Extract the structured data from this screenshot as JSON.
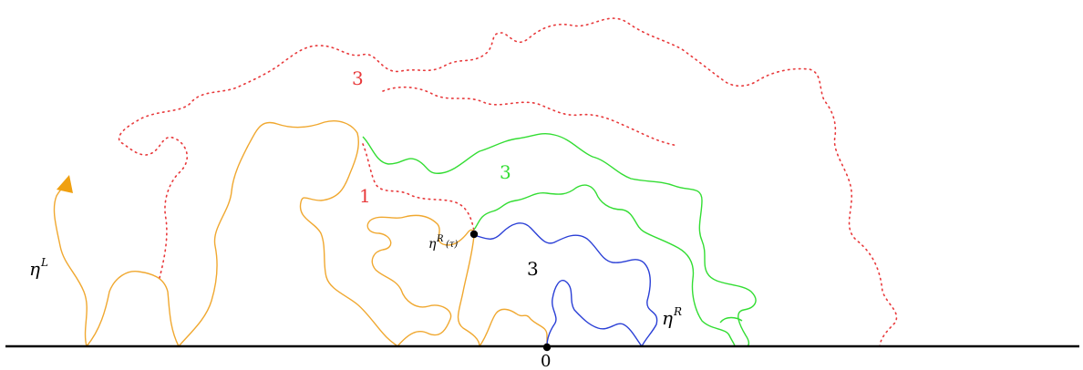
{
  "labels": {
    "red_region_top": "3",
    "red_region_mid": "1",
    "green_region": "3",
    "black_region": "3",
    "eta_L": "η",
    "eta_L_sup": "L",
    "eta_R": "η",
    "eta_R_sup": "R",
    "eta_tau": "η",
    "eta_tau_sup": "R",
    "eta_tau_arg": "(τ)",
    "origin": "0"
  },
  "colors": {
    "orange": "#f0a830",
    "red": "#e8393b",
    "green": "#33dd33",
    "blue": "#2a3fd6",
    "black": "#000000",
    "arrow": "#f0a010"
  }
}
